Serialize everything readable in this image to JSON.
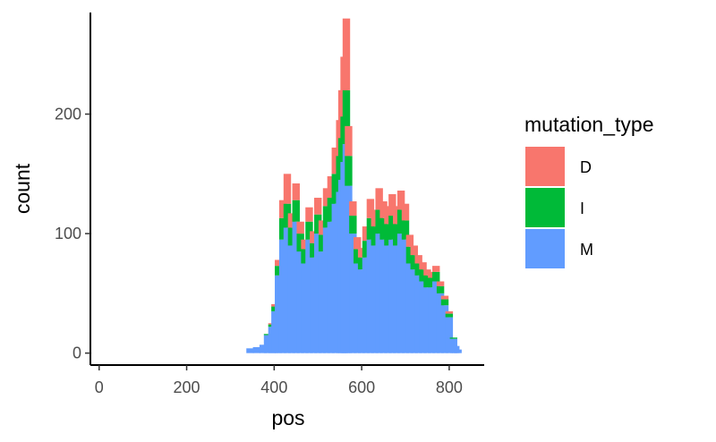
{
  "chart_data": {
    "type": "bar",
    "stacked": true,
    "title": "",
    "xlabel": "pos",
    "ylabel": "count",
    "xlim": [
      -20,
      880
    ],
    "ylim": [
      -10,
      285
    ],
    "x_ticks": [
      0,
      200,
      400,
      600,
      800
    ],
    "y_ticks": [
      0,
      100,
      200
    ],
    "grid": false,
    "legend": {
      "title": "mutation_type",
      "position": "right",
      "entries": [
        {
          "label": "D",
          "color": "#F8766D"
        },
        {
          "label": "I",
          "color": "#00BA38"
        },
        {
          "label": "M",
          "color": "#619CFF"
        }
      ]
    },
    "stack_order": [
      "M",
      "I",
      "D"
    ],
    "series": [
      {
        "name": "M",
        "color": "#619CFF",
        "x": [
          345,
          360,
          375,
          385,
          395,
          402,
          410,
          420,
          430,
          440,
          450,
          460,
          470,
          480,
          490,
          500,
          510,
          520,
          530,
          540,
          550,
          555,
          560,
          565,
          570,
          580,
          590,
          600,
          610,
          620,
          630,
          640,
          650,
          660,
          670,
          680,
          690,
          700,
          710,
          720,
          730,
          740,
          750,
          760,
          770,
          780,
          790,
          800,
          810,
          815,
          820
        ],
        "values": [
          4,
          5,
          7,
          15,
          22,
          35,
          65,
          95,
          105,
          90,
          110,
          85,
          75,
          95,
          80,
          100,
          85,
          105,
          110,
          125,
          135,
          145,
          160,
          175,
          140,
          100,
          75,
          70,
          80,
          95,
          90,
          100,
          95,
          90,
          95,
          90,
          100,
          95,
          75,
          70,
          65,
          60,
          55,
          55,
          60,
          50,
          40,
          30,
          12,
          6,
          3
        ]
      },
      {
        "name": "I",
        "color": "#00BA38",
        "x": [
          345,
          360,
          375,
          385,
          395,
          402,
          410,
          420,
          430,
          440,
          450,
          460,
          470,
          480,
          490,
          500,
          510,
          520,
          530,
          540,
          550,
          555,
          560,
          565,
          570,
          580,
          590,
          600,
          610,
          620,
          630,
          640,
          650,
          660,
          670,
          680,
          690,
          700,
          710,
          720,
          730,
          740,
          750,
          760,
          770,
          780,
          790,
          800,
          810,
          815,
          820
        ],
        "values": [
          0,
          0,
          0,
          1,
          2,
          4,
          8,
          18,
          20,
          15,
          18,
          15,
          12,
          15,
          12,
          16,
          14,
          18,
          20,
          25,
          30,
          35,
          38,
          45,
          25,
          15,
          12,
          10,
          14,
          18,
          16,
          20,
          18,
          18,
          20,
          18,
          20,
          16,
          14,
          12,
          10,
          10,
          10,
          8,
          8,
          6,
          5,
          3,
          1,
          0,
          0
        ]
      },
      {
        "name": "D",
        "color": "#F8766D",
        "x": [
          345,
          360,
          375,
          385,
          395,
          402,
          410,
          420,
          430,
          440,
          450,
          460,
          470,
          480,
          490,
          500,
          510,
          520,
          530,
          540,
          550,
          555,
          560,
          565,
          570,
          580,
          590,
          600,
          610,
          620,
          630,
          640,
          650,
          660,
          670,
          680,
          690,
          700,
          710,
          720,
          730,
          740,
          750,
          760,
          770,
          780,
          790,
          800,
          810,
          815,
          820
        ],
        "values": [
          0,
          0,
          0,
          0,
          1,
          2,
          5,
          15,
          25,
          12,
          14,
          10,
          8,
          12,
          10,
          14,
          12,
          15,
          18,
          22,
          30,
          40,
          50,
          60,
          25,
          12,
          10,
          8,
          12,
          16,
          14,
          18,
          14,
          15,
          18,
          15,
          16,
          14,
          10,
          8,
          7,
          6,
          5,
          5,
          5,
          4,
          3,
          2,
          0,
          0,
          0
        ]
      }
    ]
  }
}
